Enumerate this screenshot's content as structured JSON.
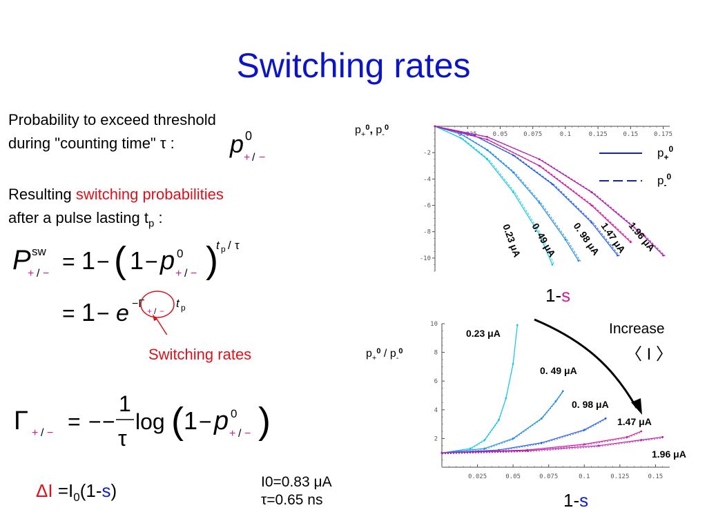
{
  "title": "Switching rates",
  "left": {
    "intro_line1": "Probability to exceed threshold",
    "intro_line2": "during \"counting time\" τ :",
    "result_prefix": "Resulting ",
    "result_highlight": "switching probabilities",
    "result_line2": "after a pulse lasting t",
    "result_line2_sub": "p",
    "result_line2_end": " :",
    "switching_rates_label": "Switching rates",
    "delta_prefix": "ΔI",
    "delta_eq": " =I",
    "delta_sub": "0",
    "delta_paren_open": "(1-",
    "delta_s": "s",
    "delta_paren_close": ")",
    "param_I0": "I0=0.83 μA",
    "param_tau": "τ=0.65 ns"
  },
  "colors": {
    "title": "#0a14c8",
    "red": "#e0101a",
    "cyan": "#14c8e6",
    "blue": "#1e5ae6",
    "magenta": "#d01aa0",
    "s_blue": "#1020d0",
    "s_magenta": "#d01aa0"
  },
  "chart_data": [
    {
      "type": "line",
      "ylabel": "p+0, p-0",
      "xlabel": "1-s",
      "xlabel_prefix": "1-",
      "xlabel_s": "s",
      "x_ticks": [
        "0.025",
        "0.05",
        "0.075",
        "0.1",
        "0.125",
        "0.15",
        "0.175"
      ],
      "y_ticks": [
        "-2",
        "-4",
        "-6",
        "-8",
        "-10"
      ],
      "xlim": [
        0,
        0.18
      ],
      "ylim": [
        -11,
        0
      ],
      "legend": [
        {
          "label": "p+0",
          "style": "solid",
          "sup": "0",
          "sub": "+"
        },
        {
          "label": "p-0",
          "style": "dashed",
          "sup": "0",
          "sub": "-"
        }
      ],
      "legend_position": "top-right",
      "series": [
        {
          "name": "0.23 μA",
          "color": "#14c8e6",
          "x": [
            0,
            0.02,
            0.04,
            0.06,
            0.08,
            0.09
          ],
          "y": [
            0,
            -0.9,
            -2.5,
            -5.0,
            -8.2,
            -10.5
          ]
        },
        {
          "name": "0. 49 μA",
          "color": "#1e8ae6",
          "x": [
            0,
            0.02,
            0.04,
            0.06,
            0.08,
            0.1,
            0.11
          ],
          "y": [
            0,
            -0.6,
            -1.8,
            -3.5,
            -5.8,
            -8.6,
            -10.2
          ]
        },
        {
          "name": "0. 98 μA",
          "color": "#1e5ae6",
          "x": [
            0,
            0.03,
            0.06,
            0.09,
            0.12,
            0.14
          ],
          "y": [
            0,
            -0.7,
            -2.2,
            -4.4,
            -7.3,
            -9.8
          ]
        },
        {
          "name": "1.47 μA",
          "color": "#d01aa0",
          "x": [
            0,
            0.04,
            0.08,
            0.12,
            0.15
          ],
          "y": [
            0,
            -1.0,
            -3.0,
            -6.0,
            -8.8
          ]
        },
        {
          "name": "1.96 μA",
          "color": "#b01ab0",
          "x": [
            0,
            0.04,
            0.08,
            0.12,
            0.16,
            0.175
          ],
          "y": [
            0,
            -0.8,
            -2.5,
            -5.0,
            -8.3,
            -9.8
          ]
        }
      ]
    },
    {
      "type": "line",
      "ylabel": "p+0 / p-0",
      "xlabel": "1-s",
      "xlabel_prefix": "1-",
      "xlabel_s": "s",
      "x_ticks": [
        "0.025",
        "0.05",
        "0.075",
        "0.1",
        "0.125",
        "0.15"
      ],
      "y_ticks": [
        "2",
        "4",
        "6",
        "8",
        "10"
      ],
      "xlim": [
        0,
        0.16
      ],
      "ylim": [
        0,
        10
      ],
      "annotation": "Increase",
      "annotation_symbol": "〈 I 〉",
      "series": [
        {
          "name": "0.23 μA",
          "color": "#14c8e6",
          "x": [
            0,
            0.02,
            0.03,
            0.04,
            0.045,
            0.05,
            0.053
          ],
          "y": [
            1,
            1.3,
            1.9,
            3.3,
            4.8,
            7.2,
            9.9
          ]
        },
        {
          "name": "0. 49 μA",
          "color": "#1e8ae6",
          "x": [
            0,
            0.03,
            0.05,
            0.07,
            0.08,
            0.085
          ],
          "y": [
            1,
            1.3,
            2.0,
            3.4,
            4.6,
            5.3
          ]
        },
        {
          "name": "0. 98 μA",
          "color": "#1e5ae6",
          "x": [
            0,
            0.04,
            0.07,
            0.1,
            0.115
          ],
          "y": [
            1,
            1.2,
            1.7,
            2.6,
            3.4
          ]
        },
        {
          "name": "1.47 μA",
          "color": "#d01aa0",
          "x": [
            0,
            0.06,
            0.1,
            0.13,
            0.14
          ],
          "y": [
            1,
            1.2,
            1.6,
            2.1,
            2.5
          ]
        },
        {
          "name": "1.96 μA",
          "color": "#b01ab0",
          "x": [
            0,
            0.06,
            0.11,
            0.14,
            0.155
          ],
          "y": [
            1,
            1.15,
            1.5,
            1.9,
            2.1
          ]
        }
      ]
    }
  ]
}
